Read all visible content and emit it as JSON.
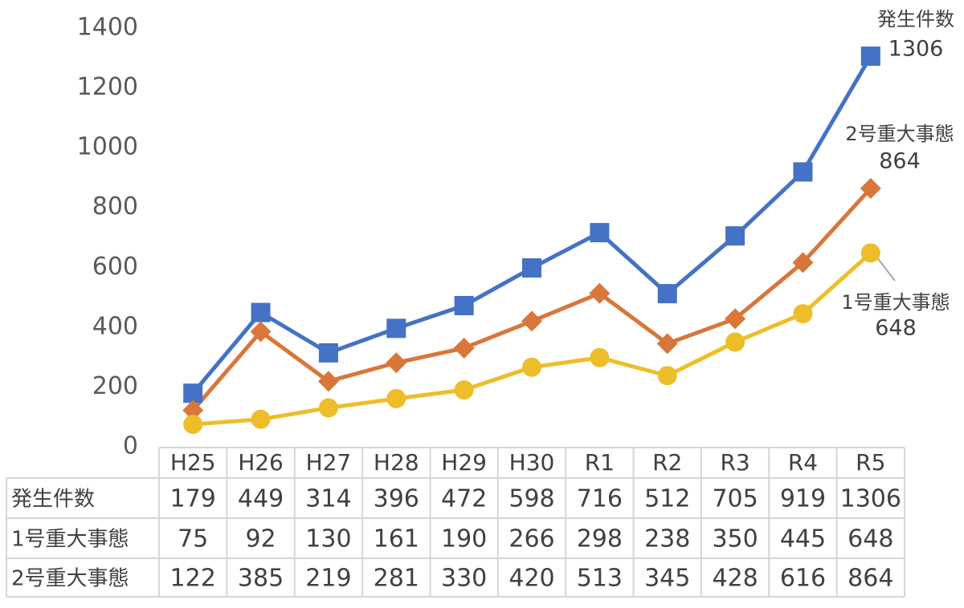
{
  "chart_data": {
    "type": "line",
    "categories": [
      "H25",
      "H26",
      "H27",
      "H28",
      "H29",
      "H30",
      "R1",
      "R2",
      "R3",
      "R4",
      "R5"
    ],
    "series": [
      {
        "name": "発生件数",
        "color": "#4472c4",
        "marker": "square",
        "values": [
          179,
          449,
          314,
          396,
          472,
          598,
          716,
          512,
          705,
          919,
          1306
        ]
      },
      {
        "name": "1号重大事態",
        "color": "#eebd2a",
        "marker": "circle",
        "values": [
          75,
          92,
          130,
          161,
          190,
          266,
          298,
          238,
          350,
          445,
          648
        ]
      },
      {
        "name": "2号重大事態",
        "color": "#d9763a",
        "marker": "diamond",
        "values": [
          122,
          385,
          219,
          281,
          330,
          420,
          513,
          345,
          428,
          616,
          864
        ]
      }
    ],
    "ylim": [
      0,
      1400
    ],
    "yticks": [
      0,
      200,
      400,
      600,
      800,
      1000,
      1200,
      1400
    ],
    "grid": false,
    "data_table": true
  }
}
